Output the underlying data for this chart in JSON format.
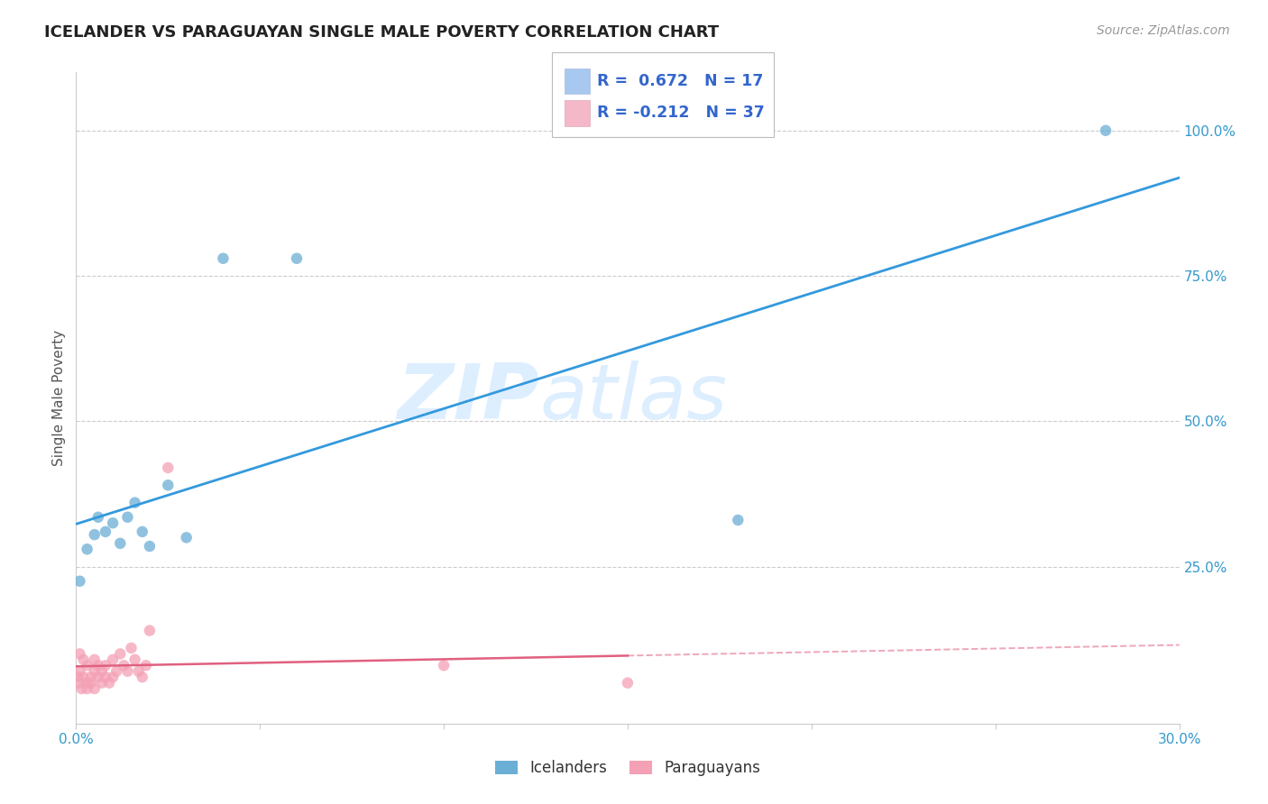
{
  "title": "ICELANDER VS PARAGUAYAN SINGLE MALE POVERTY CORRELATION CHART",
  "source": "Source: ZipAtlas.com",
  "ylabel": "Single Male Poverty",
  "xlim": [
    0.0,
    0.3
  ],
  "ylim": [
    -0.02,
    1.1
  ],
  "xticks": [
    0.0,
    0.05,
    0.1,
    0.15,
    0.2,
    0.25,
    0.3
  ],
  "xtick_labels": [
    "0.0%",
    "",
    "",
    "",
    "",
    "",
    "30.0%"
  ],
  "ytick_positions_right": [
    0.25,
    0.5,
    0.75,
    1.0
  ],
  "ytick_labels_right": [
    "25.0%",
    "50.0%",
    "75.0%",
    "100.0%"
  ],
  "grid_color": "#cccccc",
  "background_color": "#ffffff",
  "watermark_line1": "ZIP",
  "watermark_line2": "atlas",
  "watermark_color": "#ddeeff",
  "legend_R1": "R =  0.672",
  "legend_N1": "N = 17",
  "legend_R2": "R = -0.212",
  "legend_N2": "N = 37",
  "legend_color1": "#a8c8f0",
  "legend_color2": "#f5b8c8",
  "legend_label1": "Icelanders",
  "legend_label2": "Paraguayans",
  "icelander_color": "#6baed6",
  "paraguayan_color": "#f4a0b5",
  "icelander_line_color": "#3399dd",
  "paraguayan_line_color": "#e06080",
  "icelander_x": [
    0.001,
    0.003,
    0.005,
    0.006,
    0.008,
    0.01,
    0.012,
    0.014,
    0.016,
    0.018,
    0.02,
    0.025,
    0.03,
    0.04,
    0.06,
    0.18,
    0.28
  ],
  "icelander_y": [
    0.225,
    0.28,
    0.305,
    0.335,
    0.31,
    0.325,
    0.29,
    0.335,
    0.36,
    0.31,
    0.285,
    0.39,
    0.3,
    0.78,
    0.78,
    0.33,
    1.0
  ],
  "paraguayan_x": [
    0.0005,
    0.0008,
    0.001,
    0.001,
    0.0015,
    0.002,
    0.002,
    0.003,
    0.003,
    0.003,
    0.004,
    0.004,
    0.005,
    0.005,
    0.005,
    0.006,
    0.006,
    0.007,
    0.007,
    0.008,
    0.008,
    0.009,
    0.01,
    0.01,
    0.011,
    0.012,
    0.013,
    0.014,
    0.015,
    0.016,
    0.017,
    0.018,
    0.019,
    0.02,
    0.025,
    0.1,
    0.15
  ],
  "paraguayan_y": [
    0.06,
    0.05,
    0.07,
    0.1,
    0.04,
    0.06,
    0.09,
    0.05,
    0.08,
    0.04,
    0.06,
    0.05,
    0.07,
    0.09,
    0.04,
    0.06,
    0.08,
    0.05,
    0.07,
    0.06,
    0.08,
    0.05,
    0.06,
    0.09,
    0.07,
    0.1,
    0.08,
    0.07,
    0.11,
    0.09,
    0.07,
    0.06,
    0.08,
    0.14,
    0.42,
    0.08,
    0.05
  ],
  "title_fontsize": 13,
  "axis_label_fontsize": 11,
  "tick_fontsize": 11,
  "source_fontsize": 10,
  "marker_size": 9
}
